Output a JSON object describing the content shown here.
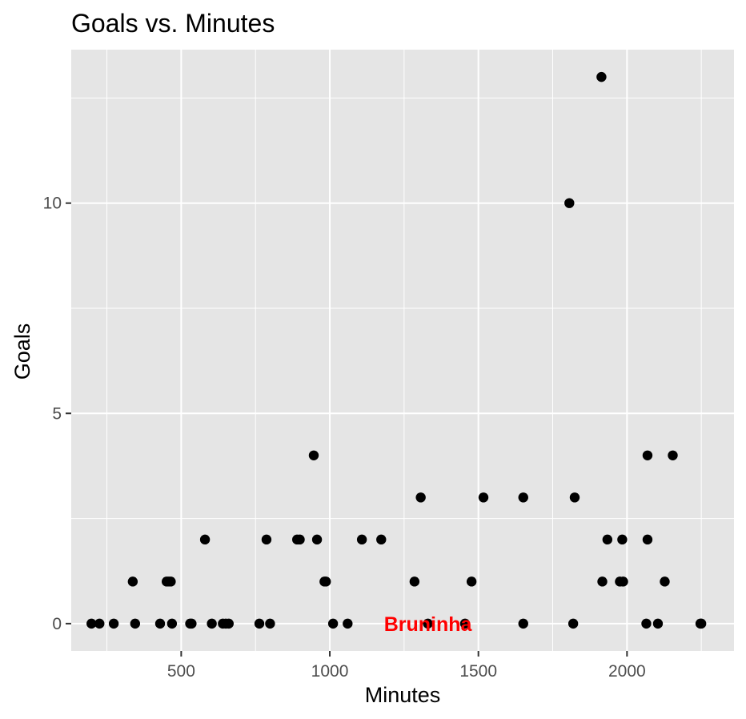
{
  "chart_data": {
    "type": "scatter",
    "title": "Goals vs. Minutes",
    "xlabel": "Minutes",
    "ylabel": "Goals",
    "xlim": [
      130,
      2360
    ],
    "ylim": [
      -0.65,
      13.65
    ],
    "x_ticks": [
      500,
      1000,
      1500,
      2000
    ],
    "y_ticks": [
      0,
      5,
      10
    ],
    "grid": true,
    "background": "#e5e5e5",
    "grid_color": "#ffffff",
    "point_color": "#000000",
    "annotation": {
      "text": "Bruninha",
      "x": 1330,
      "y": 0,
      "color": "#ff0000"
    },
    "points": [
      {
        "x": 198,
        "y": 0
      },
      {
        "x": 225,
        "y": 0
      },
      {
        "x": 273,
        "y": 0
      },
      {
        "x": 337,
        "y": 1
      },
      {
        "x": 345,
        "y": 0
      },
      {
        "x": 429,
        "y": 0
      },
      {
        "x": 451,
        "y": 1
      },
      {
        "x": 458,
        "y": 1
      },
      {
        "x": 465,
        "y": 1
      },
      {
        "x": 469,
        "y": 0
      },
      {
        "x": 530,
        "y": 0
      },
      {
        "x": 535,
        "y": 0
      },
      {
        "x": 580,
        "y": 2
      },
      {
        "x": 603,
        "y": 0
      },
      {
        "x": 640,
        "y": 0
      },
      {
        "x": 650,
        "y": 0
      },
      {
        "x": 660,
        "y": 0
      },
      {
        "x": 763,
        "y": 0
      },
      {
        "x": 787,
        "y": 2
      },
      {
        "x": 799,
        "y": 0
      },
      {
        "x": 890,
        "y": 2
      },
      {
        "x": 899,
        "y": 2
      },
      {
        "x": 946,
        "y": 4
      },
      {
        "x": 957,
        "y": 2
      },
      {
        "x": 982,
        "y": 1
      },
      {
        "x": 987,
        "y": 1
      },
      {
        "x": 1011,
        "y": 0
      },
      {
        "x": 1060,
        "y": 0
      },
      {
        "x": 1108,
        "y": 2
      },
      {
        "x": 1173,
        "y": 2
      },
      {
        "x": 1285,
        "y": 1
      },
      {
        "x": 1306,
        "y": 3
      },
      {
        "x": 1330,
        "y": 0
      },
      {
        "x": 1455,
        "y": 0
      },
      {
        "x": 1477,
        "y": 1
      },
      {
        "x": 1517,
        "y": 3
      },
      {
        "x": 1651,
        "y": 3
      },
      {
        "x": 1651,
        "y": 0
      },
      {
        "x": 1806,
        "y": 10
      },
      {
        "x": 1819,
        "y": 0
      },
      {
        "x": 1824,
        "y": 3
      },
      {
        "x": 1914,
        "y": 13
      },
      {
        "x": 1917,
        "y": 1
      },
      {
        "x": 1934,
        "y": 2
      },
      {
        "x": 1976,
        "y": 1
      },
      {
        "x": 1984,
        "y": 2
      },
      {
        "x": 1987,
        "y": 1
      },
      {
        "x": 2065,
        "y": 0
      },
      {
        "x": 2069,
        "y": 4
      },
      {
        "x": 2069,
        "y": 2
      },
      {
        "x": 2104,
        "y": 0
      },
      {
        "x": 2127,
        "y": 1
      },
      {
        "x": 2154,
        "y": 4
      },
      {
        "x": 2247,
        "y": 0
      },
      {
        "x": 2250,
        "y": 0
      }
    ]
  }
}
